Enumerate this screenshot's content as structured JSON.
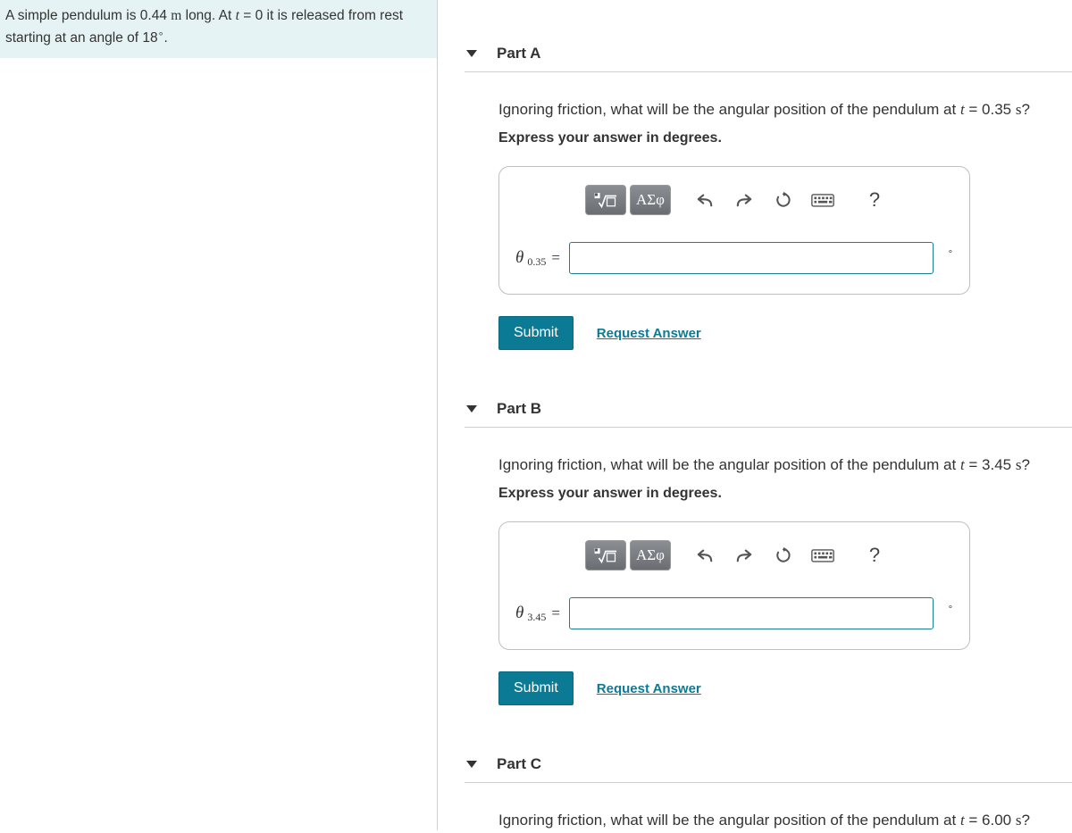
{
  "problem": {
    "text_pre": "A simple pendulum is 0.44 ",
    "unit_m": "m",
    "text_mid": " long. At ",
    "var_t": "t",
    "text_eq0": " = 0 it is released from rest starting at an angle of 18",
    "deg_sym": "∘",
    "text_end": "."
  },
  "parts": [
    {
      "title": "Part A",
      "question_pre": "Ignoring friction, what will be the angular position of the pendulum at ",
      "var_t": "t",
      "question_eq": " = 0.35 ",
      "unit_s": "s",
      "question_end": "?",
      "hint": "Express your answer in degrees.",
      "var_theta": "θ",
      "var_sub": "0.35",
      "eq": "=",
      "unit_out": "∘",
      "submit": "Submit",
      "request": "Request Answer",
      "greek_label": "ΑΣφ"
    },
    {
      "title": "Part B",
      "question_pre": "Ignoring friction, what will be the angular position of the pendulum at ",
      "var_t": "t",
      "question_eq": " = 3.45 ",
      "unit_s": "s",
      "question_end": "?",
      "hint": "Express your answer in degrees.",
      "var_theta": "θ",
      "var_sub": "3.45",
      "eq": "=",
      "unit_out": "∘",
      "submit": "Submit",
      "request": "Request Answer",
      "greek_label": "ΑΣφ"
    },
    {
      "title": "Part C",
      "question_pre": "Ignoring friction, what will be the angular position of the pendulum at ",
      "var_t": "t",
      "question_eq": " = 6.00 ",
      "unit_s": "s",
      "question_end": "?",
      "no_body": true
    }
  ],
  "colors": {
    "accent": "#0b7b95",
    "panel_bg": "#e6f3f4",
    "border": "#bfbfbf",
    "toolbar_btn_top": "#8b8f94",
    "toolbar_btn_bot": "#6a6e73"
  }
}
